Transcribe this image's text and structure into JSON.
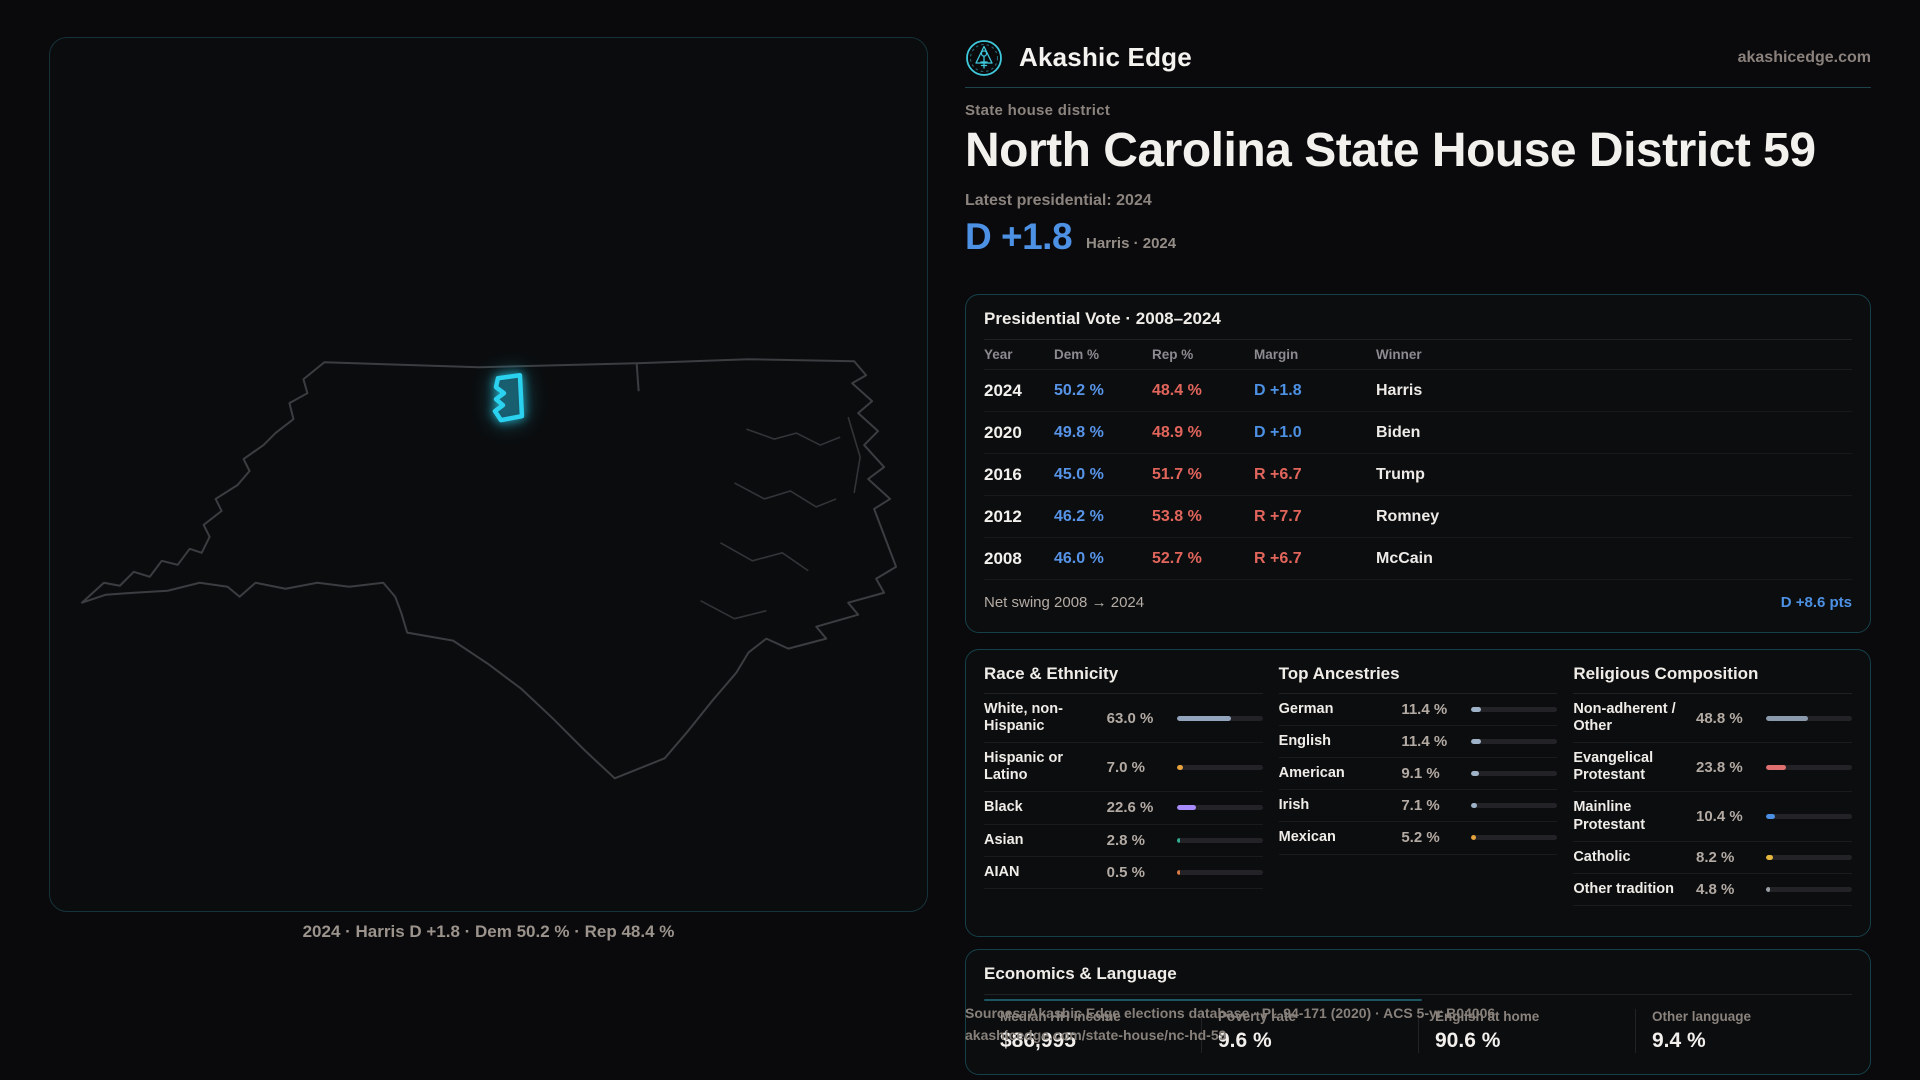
{
  "header": {
    "brand": "Akashic Edge",
    "domain": "akashicedge.com",
    "eyebrow": "State house district",
    "title": "North Carolina State House District 59",
    "latest_label": "Latest presidential: 2024",
    "headline_margin": "D +1.8",
    "headline_caption": "Harris · 2024",
    "accent_color": "#2bd2ef",
    "dem_color": "#4d91e5",
    "rep_color": "#e2655c"
  },
  "map": {
    "caption": "2024 · Harris D +1.8 · Dem 50.2 % · Rep 48.4 %"
  },
  "pres": {
    "title": "Presidential Vote · 2008–2024",
    "columns": [
      "Year",
      "Dem %",
      "Rep %",
      "Margin",
      "Winner"
    ],
    "rows": [
      {
        "year": "2024",
        "dem": "50.2 %",
        "rep": "48.4 %",
        "margin": "D +1.8",
        "margin_party": "D",
        "winner": "Harris"
      },
      {
        "year": "2020",
        "dem": "49.8 %",
        "rep": "48.9 %",
        "margin": "D +1.0",
        "margin_party": "D",
        "winner": "Biden"
      },
      {
        "year": "2016",
        "dem": "45.0 %",
        "rep": "51.7 %",
        "margin": "R +6.7",
        "margin_party": "R",
        "winner": "Trump"
      },
      {
        "year": "2012",
        "dem": "46.2 %",
        "rep": "53.8 %",
        "margin": "R +7.7",
        "margin_party": "R",
        "winner": "Romney"
      },
      {
        "year": "2008",
        "dem": "46.0 %",
        "rep": "52.7 %",
        "margin": "R +6.7",
        "margin_party": "R",
        "winner": "McCain"
      }
    ],
    "swing_label": "Net swing 2008 → 2024",
    "swing_value": "D +8.6 pts"
  },
  "demographics": {
    "race": {
      "title": "Race & Ethnicity",
      "rows": [
        {
          "label": "White, non-Hispanic",
          "value": "63.0 %",
          "pct": 63.0,
          "color": "#93a5bd"
        },
        {
          "label": "Hispanic or Latino",
          "value": "7.0 %",
          "pct": 7.0,
          "color": "#e8a33d"
        },
        {
          "label": "Black",
          "value": "22.6 %",
          "pct": 22.6,
          "color": "#a78bfa"
        },
        {
          "label": "Asian",
          "value": "2.8 %",
          "pct": 2.8,
          "color": "#2fae93"
        },
        {
          "label": "AIAN",
          "value": "0.5 %",
          "pct": 0.5,
          "color": "#e07a45"
        }
      ]
    },
    "ancestries": {
      "title": "Top Ancestries",
      "rows": [
        {
          "label": "German",
          "value": "11.4 %",
          "pct": 11.4,
          "color": "#9fb3c8"
        },
        {
          "label": "English",
          "value": "11.4 %",
          "pct": 11.4,
          "color": "#9fb3c8"
        },
        {
          "label": "American",
          "value": "9.1 %",
          "pct": 9.1,
          "color": "#9fb3c8"
        },
        {
          "label": "Irish",
          "value": "7.1 %",
          "pct": 7.1,
          "color": "#9fb3c8"
        },
        {
          "label": "Mexican",
          "value": "5.2 %",
          "pct": 5.2,
          "color": "#e8a33d"
        }
      ]
    },
    "religion": {
      "title": "Religious Composition",
      "rows": [
        {
          "label": "Non-adherent / Other",
          "value": "48.8 %",
          "pct": 48.8,
          "color": "#8b99ad"
        },
        {
          "label": "Evangelical Protestant",
          "value": "23.8 %",
          "pct": 23.8,
          "color": "#e07070"
        },
        {
          "label": "Mainline Protestant",
          "value": "10.4 %",
          "pct": 10.4,
          "color": "#4a8fe2"
        },
        {
          "label": "Catholic",
          "value": "8.2 %",
          "pct": 8.2,
          "color": "#e6b73d"
        },
        {
          "label": "Other tradition",
          "value": "4.8 %",
          "pct": 4.8,
          "color": "#9aa0a6"
        }
      ]
    }
  },
  "economics": {
    "title": "Economics & Language",
    "stats": [
      {
        "label": "Median HH income",
        "value": "$86,995"
      },
      {
        "label": "Poverty rate",
        "value": "9.6 %"
      },
      {
        "label": "English at home",
        "value": "90.6 %"
      },
      {
        "label": "Other language",
        "value": "9.4 %"
      }
    ]
  },
  "footer": {
    "sources_line": "Sources: Akashic Edge elections database · PL 94-171 (2020) · ACS 5-yr B04006",
    "url_line": "akashicedge.com/state-house/nc-hd-59"
  }
}
